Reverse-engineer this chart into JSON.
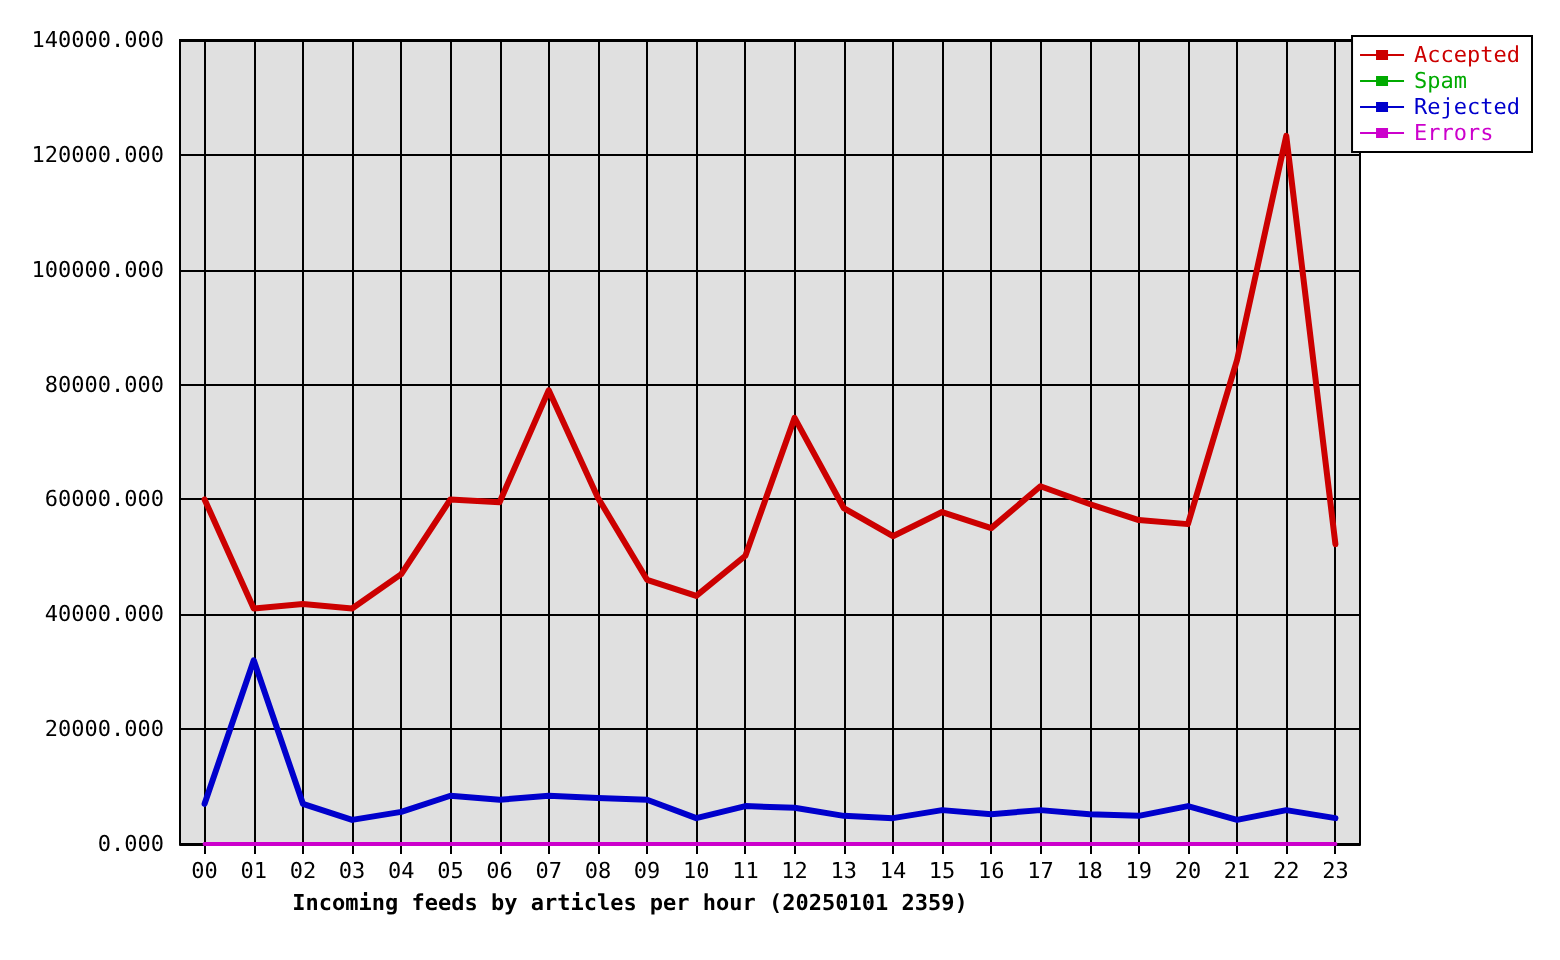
{
  "chart_data": {
    "type": "line",
    "xlabel": "Incoming feeds by articles per hour (20250101 2359)",
    "categories": [
      "00",
      "01",
      "02",
      "03",
      "04",
      "05",
      "06",
      "07",
      "08",
      "09",
      "10",
      "11",
      "12",
      "13",
      "14",
      "15",
      "16",
      "17",
      "18",
      "19",
      "20",
      "21",
      "22",
      "23"
    ],
    "series": [
      {
        "name": "Accepted",
        "color": "#cc0000",
        "values": [
          60000,
          41000,
          41800,
          41000,
          47000,
          60000,
          59500,
          79000,
          60300,
          46000,
          43200,
          50200,
          74200,
          58500,
          53600,
          57800,
          55000,
          62300,
          59200,
          56400,
          55700,
          84300,
          123300,
          52200
        ]
      },
      {
        "name": "Spam",
        "color": "#00aa00",
        "values": [
          null,
          null,
          null,
          null,
          null,
          null,
          null,
          null,
          null,
          null,
          null,
          null,
          null,
          null,
          null,
          null,
          null,
          null,
          null,
          null,
          null,
          null,
          null,
          null
        ]
      },
      {
        "name": "Rejected",
        "color": "#0000cc",
        "values": [
          7000,
          32000,
          7000,
          4200,
          5600,
          8400,
          7700,
          8400,
          8000,
          7700,
          4500,
          6600,
          6300,
          4900,
          4500,
          5900,
          5200,
          5900,
          5200,
          4900,
          6600,
          4200,
          5900,
          4500
        ]
      },
      {
        "name": "Errors",
        "color": "#cc00cc",
        "values": [
          0,
          0,
          0,
          0,
          0,
          0,
          0,
          0,
          0,
          0,
          0,
          0,
          0,
          0,
          0,
          0,
          0,
          0,
          0,
          0,
          0,
          0,
          0,
          0
        ]
      }
    ],
    "ylim": [
      0,
      140000
    ],
    "yticks": [
      {
        "value": 0,
        "label": "0.000"
      },
      {
        "value": 20000,
        "label": "20000.000"
      },
      {
        "value": 40000,
        "label": "40000.000"
      },
      {
        "value": 60000,
        "label": "60000.000"
      },
      {
        "value": 80000,
        "label": "80000.000"
      },
      {
        "value": 100000,
        "label": "100000.000"
      },
      {
        "value": 120000,
        "label": "120000.000"
      },
      {
        "value": 140000,
        "label": "140000.000"
      }
    ],
    "grid": true,
    "legend": "top right",
    "marker": "none",
    "line_style": "solid"
  }
}
